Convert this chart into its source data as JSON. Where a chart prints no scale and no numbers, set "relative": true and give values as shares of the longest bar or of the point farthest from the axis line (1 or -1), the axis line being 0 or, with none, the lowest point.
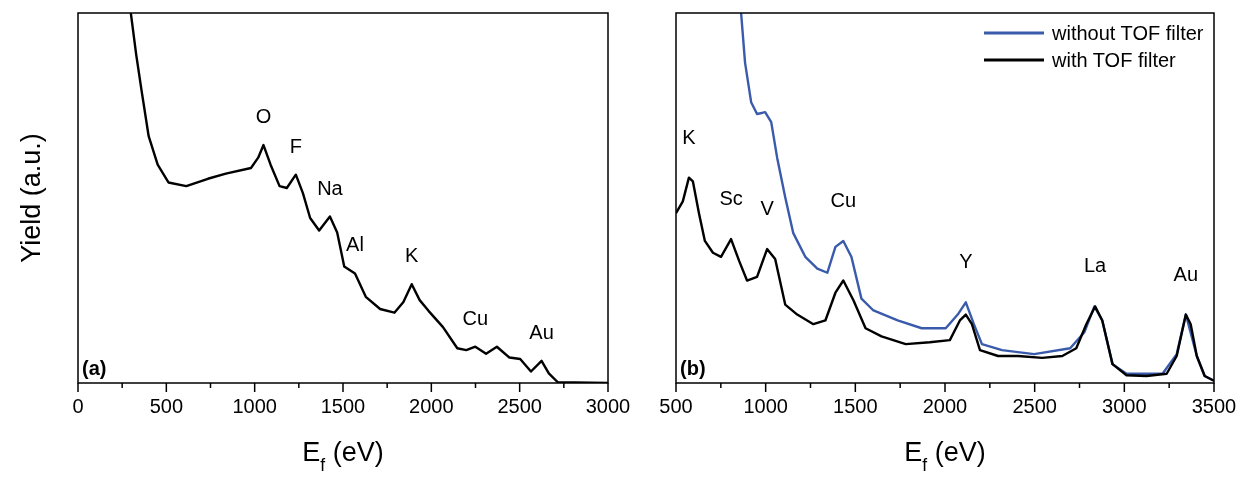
{
  "chart_data": [
    {
      "type": "line",
      "relative": true,
      "xlabel": "E$_{f}$ (eV)",
      "ylabel": "Yield (a.u.)",
      "xlim": [
        0,
        3000
      ],
      "xticks": [
        0,
        {
          "value": 250,
          "label": null
        },
        500,
        {
          "value": 750,
          "label": null
        },
        1000,
        {
          "value": 1250,
          "label": null
        },
        1500,
        {
          "value": 1750,
          "label": null
        },
        2000,
        {
          "value": 2250,
          "label": null
        },
        2500,
        {
          "value": 2750,
          "label": null
        },
        3000
      ],
      "series": [
        {
          "color": "#000000",
          "x": [
            299,
            329,
            359,
            400,
            451,
            512,
            613,
            735,
            837,
            979,
            1020,
            1050,
            1090,
            1141,
            1182,
            1233,
            1273,
            1314,
            1365,
            1426,
            1467,
            1507,
            1568,
            1629,
            1710,
            1791,
            1842,
            1889,
            1934,
            1984,
            2066,
            2147,
            2198,
            2249,
            2310,
            2371,
            2442,
            2503,
            2564,
            2624,
            2665,
            2716,
            3000
          ],
          "values": [
            1.0,
            0.889,
            0.793,
            0.667,
            0.59,
            0.542,
            0.532,
            0.552,
            0.566,
            0.581,
            0.609,
            0.643,
            0.59,
            0.532,
            0.527,
            0.563,
            0.513,
            0.446,
            0.412,
            0.45,
            0.407,
            0.315,
            0.296,
            0.233,
            0.2,
            0.19,
            0.219,
            0.267,
            0.224,
            0.195,
            0.151,
            0.094,
            0.089,
            0.098,
            0.079,
            0.098,
            0.069,
            0.065,
            0.031,
            0.06,
            0.026,
            0.002,
            0
          ]
        }
      ],
      "annotations": [
        {
          "text": "O",
          "x": 1050,
          "y": 0.643
        },
        {
          "text": "F",
          "x": 1233,
          "y": 0.563
        },
        {
          "text": "Na",
          "x": 1426,
          "y": 0.45
        },
        {
          "text": "Al",
          "x": 1568,
          "y": 0.296
        },
        {
          "text": "K",
          "x": 1889,
          "y": 0.267
        },
        {
          "text": "Cu",
          "x": 2249,
          "y": 0.098
        },
        {
          "text": "Au",
          "x": 2624,
          "y": 0.06
        },
        "(a)"
      ],
      "legend": false
    },
    {
      "type": "line",
      "relative": true,
      "xlabel": "E$_{f}$ (eV)",
      "xlim": [
        500,
        3500
      ],
      "xticks": [
        500,
        {
          "value": 750,
          "label": null
        },
        1000,
        {
          "value": 1250,
          "label": null
        },
        1500,
        {
          "value": 1750,
          "label": null
        },
        2000,
        {
          "value": 2250,
          "label": null
        },
        2500,
        {
          "value": 2750,
          "label": null
        },
        3000,
        {
          "value": 3250,
          "label": null
        },
        3500
      ],
      "series": [
        {
          "name": "without TOF filter",
          "color": "#3a5bab",
          "x": [
            863,
            885,
            919,
            952,
            997,
            1031,
            1064,
            1109,
            1154,
            1221,
            1288,
            1344,
            1389,
            1433,
            1478,
            1534,
            1601,
            1736,
            1870,
            2004,
            2071,
            2116,
            2161,
            2206,
            2318,
            2497,
            2698,
            2777,
            2833,
            2877,
            2934,
            3012,
            3213,
            3292,
            3343,
            3404,
            3448,
            3500
          ],
          "values": [
            1.0,
            0.866,
            0.759,
            0.727,
            0.732,
            0.705,
            0.609,
            0.502,
            0.405,
            0.341,
            0.309,
            0.298,
            0.368,
            0.384,
            0.341,
            0.228,
            0.196,
            0.169,
            0.148,
            0.148,
            0.185,
            0.218,
            0.159,
            0.105,
            0.089,
            0.078,
            0.094,
            0.137,
            0.207,
            0.169,
            0.051,
            0.025,
            0.025,
            0.078,
            0.185,
            0.073,
            0.019,
            0.006
          ]
        },
        {
          "name": "with TOF filter",
          "color": "#000000",
          "x": [
            500,
            538,
            572,
            594,
            628,
            661,
            706,
            751,
            807,
            852,
            896,
            952,
            1008,
            1053,
            1109,
            1176,
            1266,
            1333,
            1389,
            1433,
            1490,
            1557,
            1646,
            1781,
            1915,
            2027,
            2083,
            2116,
            2150,
            2195,
            2296,
            2407,
            2542,
            2654,
            2732,
            2788,
            2837,
            2877,
            2934,
            3012,
            3124,
            3236,
            3292,
            3343,
            3370,
            3404,
            3448,
            3500
          ],
          "values": [
            0.459,
            0.491,
            0.555,
            0.545,
            0.459,
            0.384,
            0.352,
            0.341,
            0.389,
            0.33,
            0.277,
            0.287,
            0.362,
            0.335,
            0.212,
            0.185,
            0.159,
            0.169,
            0.244,
            0.277,
            0.223,
            0.148,
            0.126,
            0.105,
            0.11,
            0.116,
            0.169,
            0.185,
            0.159,
            0.089,
            0.073,
            0.073,
            0.068,
            0.073,
            0.094,
            0.159,
            0.207,
            0.169,
            0.051,
            0.021,
            0.019,
            0.025,
            0.073,
            0.185,
            0.159,
            0.073,
            0.019,
            0.006
          ]
        }
      ],
      "annotations": [
        {
          "text": "K",
          "x": 572,
          "y": 0.555
        },
        {
          "text": "Sc",
          "x": 807,
          "y": 0.389
        },
        {
          "text": "V",
          "x": 1008,
          "y": 0.362
        },
        {
          "text": "Cu",
          "x": 1433,
          "y": 0.384
        },
        {
          "text": "Y",
          "x": 2116,
          "y": 0.218
        },
        {
          "text": "La",
          "x": 2837,
          "y": 0.207
        },
        {
          "text": "Au",
          "x": 3343,
          "y": 0.185
        },
        "(b)"
      ],
      "legend": "top right"
    }
  ]
}
